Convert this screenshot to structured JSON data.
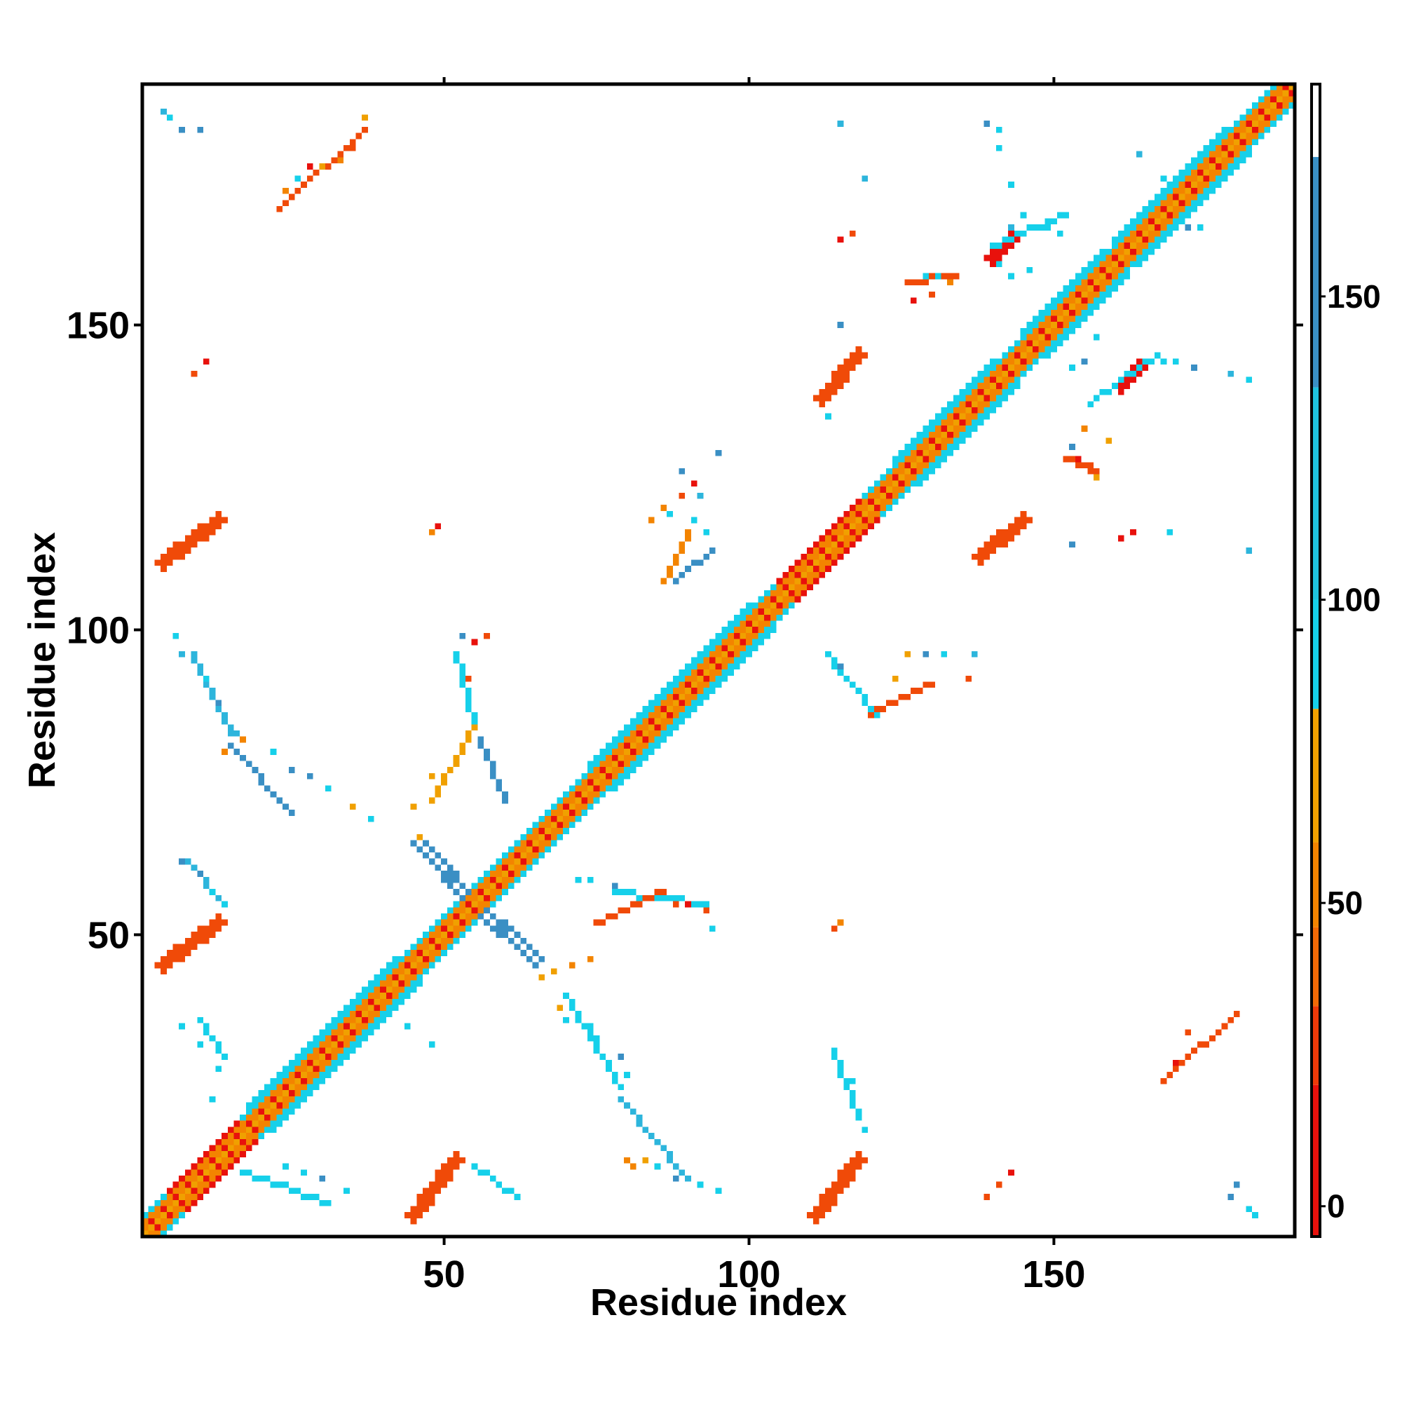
{
  "chart_data": {
    "type": "heatmap",
    "title": "",
    "xlabel": "Residue index",
    "ylabel": "Residue index",
    "xlim": [
      0.5,
      189.5
    ],
    "ylim": [
      0.5,
      189.5
    ],
    "x_ticks": [
      50,
      100,
      150
    ],
    "y_ticks": [
      50,
      100,
      150
    ],
    "colorbar": {
      "ticks": [
        0,
        50,
        100,
        150
      ],
      "range": [
        -5,
        185
      ],
      "stops": [
        {
          "from": -5,
          "to": 20,
          "color": "#e8110c"
        },
        {
          "from": 20,
          "to": 33,
          "color": "#ee3a09"
        },
        {
          "from": 33,
          "to": 46,
          "color": "#f26a06"
        },
        {
          "from": 46,
          "to": 60,
          "color": "#f38400"
        },
        {
          "from": 60,
          "to": 82,
          "color": "#f0a000"
        },
        {
          "from": 82,
          "to": 100,
          "color": "#16d0ea"
        },
        {
          "from": 100,
          "to": 135,
          "color": "#1fc3de"
        },
        {
          "from": 135,
          "to": 173,
          "color": "#3a8fc4"
        },
        {
          "from": 173,
          "to": 185,
          "color": "#ffffff"
        }
      ]
    },
    "colors": {
      "red": "#e8110c",
      "red_orange": "#f04a08",
      "orange": "#f38400",
      "amber": "#f0a000",
      "cyan": "#16d0ea",
      "sky": "#2db5dc",
      "steel": "#3a8fc4"
    },
    "bands": [
      {
        "x1": 1,
        "y1": 1,
        "x2": 189,
        "y2": 189,
        "w": 2,
        "c": "red"
      },
      {
        "x1": 1,
        "y1": 1,
        "x2": 189,
        "y2": 189,
        "w": 4,
        "c": "orange"
      },
      {
        "x1": 1,
        "y1": 1,
        "x2": 189,
        "y2": 189,
        "w": 6,
        "c": "cyan"
      },
      {
        "x1": 78,
        "y1": 78,
        "x2": 100,
        "y2": 100,
        "w": 8,
        "c": "cyan"
      },
      {
        "x1": 22,
        "y1": 22,
        "x2": 42,
        "y2": 42,
        "w": 8,
        "c": "cyan"
      },
      {
        "x1": 128,
        "y1": 128,
        "x2": 140,
        "y2": 140,
        "w": 8,
        "c": "cyan"
      },
      {
        "x1": 149,
        "y1": 149,
        "x2": 158,
        "y2": 158,
        "w": 8,
        "c": "cyan"
      },
      {
        "x1": 164,
        "y1": 164,
        "x2": 178,
        "y2": 178,
        "w": 8,
        "c": "cyan"
      },
      {
        "x1": 108,
        "y1": 108,
        "x2": 118,
        "y2": 118,
        "w": 6,
        "c": "red"
      },
      {
        "x1": 8,
        "y1": 8,
        "x2": 16,
        "y2": 16,
        "w": 6,
        "c": "red"
      },
      {
        "x1": 44,
        "y1": 44,
        "x2": 53,
        "y2": 53,
        "w": 4,
        "c": "red"
      },
      {
        "x1": 45,
        "y1": 4,
        "x2": 52,
        "y2": 13,
        "w": 3,
        "c": "red_orange"
      },
      {
        "x1": 4,
        "y1": 45,
        "x2": 13,
        "y2": 52,
        "w": 3,
        "c": "red_orange"
      },
      {
        "x1": 111,
        "y1": 4,
        "x2": 118,
        "y2": 13,
        "w": 3,
        "c": "red_orange"
      },
      {
        "x1": 4,
        "y1": 111,
        "x2": 13,
        "y2": 118,
        "w": 3,
        "c": "red_orange"
      },
      {
        "x1": 112,
        "y1": 138,
        "x2": 118,
        "y2": 145,
        "w": 3,
        "c": "red_orange"
      },
      {
        "x1": 138,
        "y1": 112,
        "x2": 145,
        "y2": 118,
        "w": 3,
        "c": "red_orange"
      },
      {
        "x1": 140,
        "y1": 161,
        "x2": 143,
        "y2": 164,
        "w": 2,
        "c": "red"
      },
      {
        "x1": 161,
        "y1": 140,
        "x2": 164,
        "y2": 143,
        "w": 2,
        "c": "red"
      },
      {
        "x1": 46,
        "y1": 65,
        "x2": 55,
        "y2": 55,
        "w": 2,
        "c": "steel"
      },
      {
        "x1": 55,
        "y1": 55,
        "x2": 65,
        "y2": 46,
        "w": 2,
        "c": "steel"
      },
      {
        "x1": 10,
        "y1": 36,
        "x2": 14,
        "y2": 30,
        "w": 1,
        "c": "cyan"
      },
      {
        "x1": 9,
        "y1": 96,
        "x2": 15,
        "y2": 83,
        "w": 1,
        "c": "sky"
      },
      {
        "x1": 15,
        "y1": 81,
        "x2": 25,
        "y2": 70,
        "w": 1,
        "c": "steel"
      },
      {
        "x1": 8,
        "y1": 62,
        "x2": 14,
        "y2": 55,
        "w": 1,
        "c": "sky"
      },
      {
        "x1": 17,
        "y1": 11,
        "x2": 31,
        "y2": 6,
        "w": 1,
        "c": "cyan"
      },
      {
        "x1": 52,
        "y1": 96,
        "x2": 55,
        "y2": 84,
        "w": 1,
        "c": "cyan"
      },
      {
        "x1": 55,
        "y1": 84,
        "x2": 48,
        "y2": 72,
        "w": 1,
        "c": "amber"
      },
      {
        "x1": 56,
        "y1": 82,
        "x2": 60,
        "y2": 72,
        "w": 1,
        "c": "steel"
      },
      {
        "x1": 70,
        "y1": 40,
        "x2": 79,
        "y2": 25,
        "w": 1,
        "c": "cyan"
      },
      {
        "x1": 79,
        "y1": 23,
        "x2": 90,
        "y2": 10,
        "w": 1,
        "c": "sky"
      },
      {
        "x1": 55,
        "y1": 12,
        "x2": 62,
        "y2": 7,
        "w": 1,
        "c": "cyan"
      },
      {
        "x1": 78,
        "y1": 57,
        "x2": 93,
        "y2": 55,
        "w": 1,
        "c": "cyan"
      },
      {
        "x1": 75,
        "y1": 52,
        "x2": 86,
        "y2": 57,
        "w": 1,
        "c": "red_orange"
      },
      {
        "x1": 90,
        "y1": 116,
        "x2": 86,
        "y2": 108,
        "w": 1,
        "c": "orange"
      },
      {
        "x1": 88,
        "y1": 108,
        "x2": 94,
        "y2": 113,
        "w": 1,
        "c": "steel"
      },
      {
        "x1": 120,
        "y1": 86,
        "x2": 130,
        "y2": 91,
        "w": 1,
        "c": "red_orange"
      },
      {
        "x1": 113,
        "y1": 96,
        "x2": 121,
        "y2": 86,
        "w": 1,
        "c": "cyan"
      },
      {
        "x1": 114,
        "y1": 31,
        "x2": 118,
        "y2": 20,
        "w": 1,
        "c": "cyan"
      },
      {
        "x1": 168,
        "y1": 26,
        "x2": 180,
        "y2": 37,
        "w": 1,
        "c": "red_orange"
      },
      {
        "x1": 23,
        "y1": 169,
        "x2": 37,
        "y2": 182,
        "w": 1,
        "c": "red_orange"
      },
      {
        "x1": 140,
        "y1": 163,
        "x2": 152,
        "y2": 168,
        "w": 1,
        "c": "cyan"
      },
      {
        "x1": 157,
        "y1": 138,
        "x2": 167,
        "y2": 145,
        "w": 1,
        "c": "cyan"
      },
      {
        "x1": 126,
        "y1": 157,
        "x2": 134,
        "y2": 158,
        "w": 1,
        "c": "red_orange"
      },
      {
        "x1": 152,
        "y1": 128,
        "x2": 157,
        "y2": 126,
        "w": 1,
        "c": "red_orange"
      }
    ],
    "points": [
      [
        4,
        185,
        "sky"
      ],
      [
        5,
        184,
        "cyan"
      ],
      [
        7,
        182,
        "steel"
      ],
      [
        10,
        182,
        "steel"
      ],
      [
        37,
        184,
        "amber"
      ],
      [
        35,
        179,
        "red_orange"
      ],
      [
        33,
        177,
        "orange"
      ],
      [
        28,
        176,
        "red"
      ],
      [
        30,
        176,
        "amber"
      ],
      [
        26,
        174,
        "cyan"
      ],
      [
        24,
        172,
        "orange"
      ],
      [
        9,
        142,
        "red_orange"
      ],
      [
        11,
        144,
        "red"
      ],
      [
        6,
        99,
        "cyan"
      ],
      [
        7,
        96,
        "sky"
      ],
      [
        11,
        92,
        "cyan"
      ],
      [
        13,
        88,
        "steel"
      ],
      [
        17,
        82,
        "orange"
      ],
      [
        14,
        80,
        "orange"
      ],
      [
        16,
        83,
        "sky"
      ],
      [
        22,
        80,
        "cyan"
      ],
      [
        25,
        77,
        "steel"
      ],
      [
        28,
        76,
        "steel"
      ],
      [
        31,
        74,
        "cyan"
      ],
      [
        35,
        71,
        "amber"
      ],
      [
        38,
        69,
        "cyan"
      ],
      [
        7,
        62,
        "steel"
      ],
      [
        10,
        60,
        "steel"
      ],
      [
        12,
        57,
        "cyan"
      ],
      [
        14,
        55,
        "cyan"
      ],
      [
        7,
        35,
        "cyan"
      ],
      [
        10,
        32,
        "cyan"
      ],
      [
        13,
        28,
        "cyan"
      ],
      [
        12,
        23,
        "cyan"
      ],
      [
        24,
        12,
        "cyan"
      ],
      [
        27,
        11,
        "cyan"
      ],
      [
        30,
        10,
        "steel"
      ],
      [
        34,
        8,
        "cyan"
      ],
      [
        48,
        32,
        "cyan"
      ],
      [
        44,
        35,
        "cyan"
      ],
      [
        48,
        116,
        "orange"
      ],
      [
        49,
        117,
        "red"
      ],
      [
        53,
        99,
        "steel"
      ],
      [
        55,
        98,
        "red"
      ],
      [
        57,
        99,
        "red_orange"
      ],
      [
        54,
        92,
        "red_orange"
      ],
      [
        48,
        76,
        "amber"
      ],
      [
        45,
        71,
        "amber"
      ],
      [
        46,
        66,
        "amber"
      ],
      [
        66,
        43,
        "amber"
      ],
      [
        68,
        44,
        "amber"
      ],
      [
        71,
        45,
        "orange"
      ],
      [
        74,
        46,
        "orange"
      ],
      [
        69,
        38,
        "amber"
      ],
      [
        70,
        36,
        "cyan"
      ],
      [
        74,
        35,
        "cyan"
      ],
      [
        75,
        33,
        "cyan"
      ],
      [
        79,
        30,
        "steel"
      ],
      [
        80,
        27,
        "cyan"
      ],
      [
        81,
        12,
        "orange"
      ],
      [
        80,
        13,
        "orange"
      ],
      [
        83,
        13,
        "amber"
      ],
      [
        85,
        12,
        "cyan"
      ],
      [
        88,
        10,
        "steel"
      ],
      [
        92,
        9,
        "cyan"
      ],
      [
        95,
        8,
        "cyan"
      ],
      [
        72,
        59,
        "cyan"
      ],
      [
        74,
        59,
        "cyan"
      ],
      [
        78,
        58,
        "steel"
      ],
      [
        82,
        56,
        "cyan"
      ],
      [
        88,
        55,
        "red_orange"
      ],
      [
        90,
        55,
        "red"
      ],
      [
        93,
        54,
        "red_orange"
      ],
      [
        94,
        51,
        "cyan"
      ],
      [
        84,
        118,
        "orange"
      ],
      [
        86,
        120,
        "orange"
      ],
      [
        89,
        122,
        "red_orange"
      ],
      [
        91,
        124,
        "red"
      ],
      [
        92,
        122,
        "sky"
      ],
      [
        95,
        129,
        "steel"
      ],
      [
        87,
        119,
        "cyan"
      ],
      [
        89,
        126,
        "steel"
      ],
      [
        91,
        118,
        "cyan"
      ],
      [
        93,
        116,
        "cyan"
      ],
      [
        115,
        94,
        "steel"
      ],
      [
        118,
        90,
        "cyan"
      ],
      [
        124,
        92,
        "amber"
      ],
      [
        126,
        96,
        "amber"
      ],
      [
        129,
        96,
        "steel"
      ],
      [
        132,
        96,
        "cyan"
      ],
      [
        137,
        96,
        "sky"
      ],
      [
        114,
        51,
        "red_orange"
      ],
      [
        115,
        52,
        "orange"
      ],
      [
        115,
        29,
        "cyan"
      ],
      [
        117,
        26,
        "cyan"
      ],
      [
        117,
        23,
        "cyan"
      ],
      [
        119,
        18,
        "cyan"
      ],
      [
        115,
        183,
        "sky"
      ],
      [
        119,
        174,
        "sky"
      ],
      [
        115,
        164,
        "red"
      ],
      [
        117,
        165,
        "red_orange"
      ],
      [
        115,
        150,
        "steel"
      ],
      [
        113,
        135,
        "cyan"
      ],
      [
        129,
        158,
        "cyan"
      ],
      [
        131,
        158,
        "cyan"
      ],
      [
        127,
        154,
        "red"
      ],
      [
        130,
        155,
        "red_orange"
      ],
      [
        133,
        157,
        "orange"
      ],
      [
        139,
        183,
        "steel"
      ],
      [
        141,
        182,
        "cyan"
      ],
      [
        141,
        179,
        "cyan"
      ],
      [
        143,
        173,
        "cyan"
      ],
      [
        145,
        168,
        "cyan"
      ],
      [
        143,
        166,
        "sky"
      ],
      [
        141,
        160,
        "cyan"
      ],
      [
        143,
        158,
        "cyan"
      ],
      [
        146,
        159,
        "cyan"
      ],
      [
        149,
        166,
        "cyan"
      ],
      [
        151,
        165,
        "cyan"
      ],
      [
        153,
        143,
        "cyan"
      ],
      [
        155,
        144,
        "steel"
      ],
      [
        157,
        148,
        "cyan"
      ],
      [
        156,
        137,
        "cyan"
      ],
      [
        153,
        130,
        "steel"
      ],
      [
        155,
        133,
        "orange"
      ],
      [
        159,
        131,
        "amber"
      ],
      [
        154,
        128,
        "red"
      ],
      [
        156,
        127,
        "red_orange"
      ],
      [
        157,
        125,
        "amber"
      ],
      [
        153,
        114,
        "steel"
      ],
      [
        161,
        115,
        "red"
      ],
      [
        163,
        116,
        "red"
      ],
      [
        169,
        116,
        "cyan"
      ],
      [
        182,
        113,
        "sky"
      ],
      [
        164,
        178,
        "sky"
      ],
      [
        168,
        174,
        "cyan"
      ],
      [
        172,
        166,
        "sky"
      ],
      [
        174,
        166,
        "cyan"
      ],
      [
        168,
        144,
        "cyan"
      ],
      [
        170,
        144,
        "cyan"
      ],
      [
        173,
        143,
        "steel"
      ],
      [
        179,
        142,
        "sky"
      ],
      [
        182,
        141,
        "cyan"
      ],
      [
        172,
        166,
        "steel"
      ],
      [
        139,
        7,
        "red_orange"
      ],
      [
        141,
        9,
        "red_orange"
      ],
      [
        143,
        11,
        "red"
      ],
      [
        172,
        34,
        "red_orange"
      ],
      [
        170,
        29,
        "red"
      ],
      [
        179,
        7,
        "steel"
      ],
      [
        182,
        5,
        "cyan"
      ],
      [
        183,
        4,
        "cyan"
      ],
      [
        180,
        9,
        "steel"
      ],
      [
        114,
        94,
        "cyan"
      ],
      [
        136,
        92,
        "red_orange"
      ]
    ]
  }
}
